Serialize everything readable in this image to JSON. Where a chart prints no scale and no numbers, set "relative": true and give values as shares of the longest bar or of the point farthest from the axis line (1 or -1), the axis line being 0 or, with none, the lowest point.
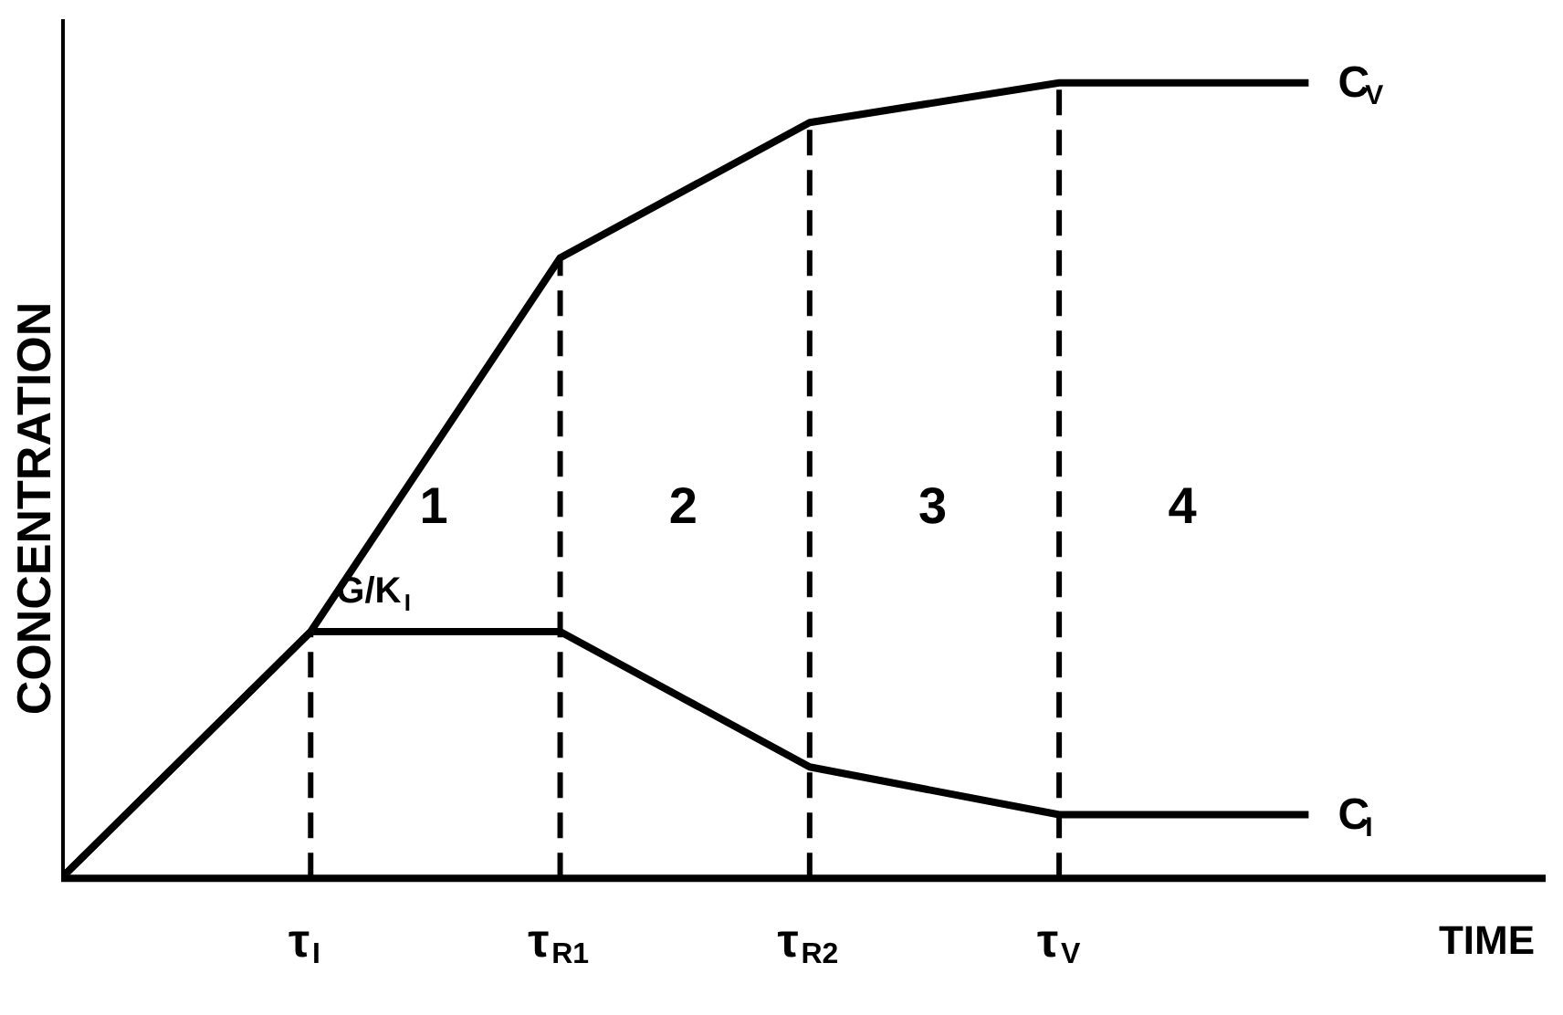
{
  "chart_data": {
    "type": "line",
    "relative": true,
    "ylabel": "CONCENTRATION",
    "xlabel": "TIME",
    "categories": [
      null,
      "τ$_{I}$",
      "τ$_{R1}$",
      "τ$_{R2}$",
      "τ$_{V}$",
      null
    ],
    "series": [
      {
        "name": "C$_{V}$",
        "color": "#000000",
        "values": [
          0,
          0.31,
          0.78,
          0.95,
          1,
          1
        ]
      },
      {
        "name": "C$_{I}$",
        "color": "#000000",
        "values": [
          0,
          0.31,
          0.31,
          0.14,
          0.08,
          0.08
        ]
      }
    ],
    "ref_lines": [
      {
        "axis": "x",
        "value": "τ$_{I}$",
        "line_style": "dashed",
        "color": "#000000"
      },
      {
        "axis": "x",
        "value": "τ$_{R1}$",
        "line_style": "dashed",
        "color": "#000000"
      },
      {
        "axis": "x",
        "value": "τ$_{R2}$",
        "line_style": "dashed",
        "color": "#000000"
      },
      {
        "axis": "x",
        "value": "τ$_{V}$",
        "line_style": "dashed",
        "color": "#000000"
      }
    ],
    "annotations": [
      "G/K$_{I}$",
      "1",
      "2",
      "3",
      "4"
    ],
    "grid": false,
    "marker": "none",
    "line_style": "solid"
  }
}
